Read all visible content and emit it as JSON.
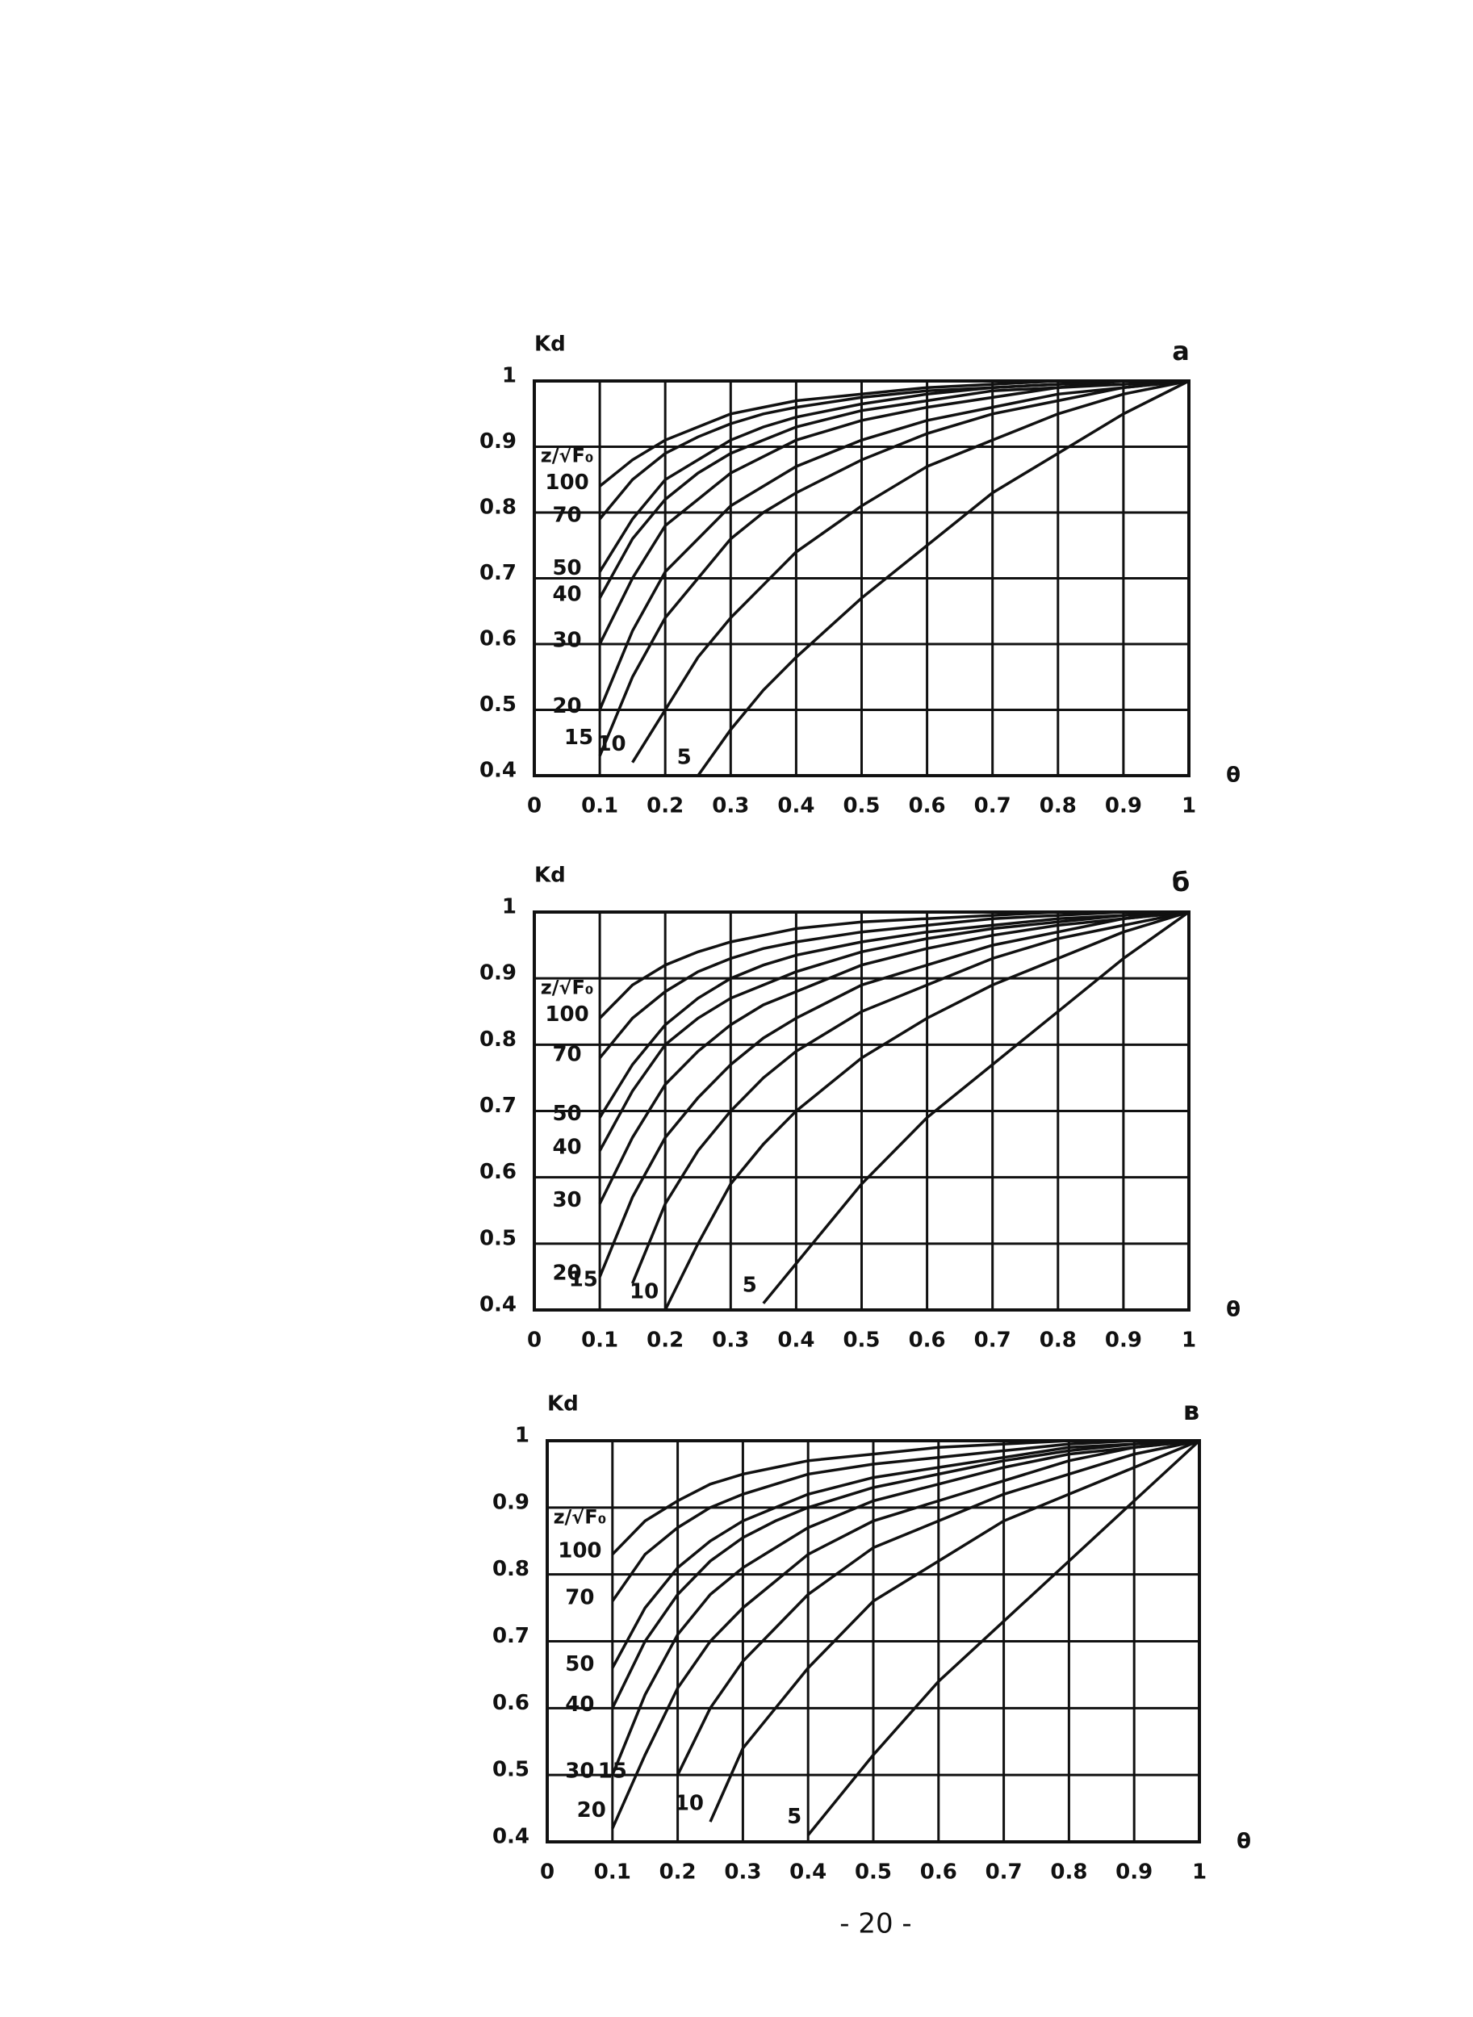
{
  "chart_data": [
    {
      "type": "line",
      "title": "а",
      "y_label": "Kd",
      "x_label": "θ",
      "legend_title": "z/√F₀",
      "grid": true,
      "x": [
        0.1,
        0.15,
        0.2,
        0.25,
        0.3,
        0.35,
        0.4,
        0.5,
        0.6,
        0.7,
        0.8,
        0.9,
        1
      ],
      "xlim": [
        0,
        1
      ],
      "ylim": [
        0.4,
        1
      ],
      "xticks": [
        0,
        0.1,
        0.2,
        0.3,
        0.4,
        0.5,
        0.6,
        0.7,
        0.8,
        0.9,
        1
      ],
      "yticks": [
        0.4,
        0.5,
        0.6,
        0.7,
        0.8,
        0.9,
        1
      ],
      "series": [
        {
          "name": "100",
          "color": "#111111",
          "values": [
            0.84,
            0.88,
            0.91,
            0.93,
            0.95,
            0.96,
            0.97,
            0.98,
            0.99,
            0.995,
            1,
            1,
            1
          ]
        },
        {
          "name": "70",
          "color": "#111111",
          "values": [
            0.79,
            0.85,
            0.89,
            0.915,
            0.935,
            0.95,
            0.96,
            0.975,
            0.985,
            0.99,
            0.995,
            1,
            1
          ]
        },
        {
          "name": "50",
          "color": "#111111",
          "values": [
            0.71,
            0.79,
            0.85,
            0.88,
            0.91,
            0.93,
            0.945,
            0.965,
            0.98,
            0.99,
            0.995,
            1,
            1
          ]
        },
        {
          "name": "40",
          "color": "#111111",
          "values": [
            0.67,
            0.76,
            0.82,
            0.86,
            0.89,
            0.91,
            0.93,
            0.955,
            0.97,
            0.985,
            0.99,
            1,
            1
          ]
        },
        {
          "name": "30",
          "color": "#111111",
          "values": [
            0.6,
            0.7,
            0.78,
            0.82,
            0.86,
            0.885,
            0.91,
            0.94,
            0.96,
            0.975,
            0.99,
            0.995,
            1
          ]
        },
        {
          "name": "20",
          "color": "#111111",
          "values": [
            0.5,
            0.62,
            0.71,
            0.76,
            0.81,
            0.84,
            0.87,
            0.91,
            0.94,
            0.96,
            0.98,
            0.99,
            1
          ]
        },
        {
          "name": "15",
          "color": "#111111",
          "values": [
            0.43,
            0.55,
            0.64,
            0.7,
            0.76,
            0.8,
            0.83,
            0.88,
            0.92,
            0.95,
            0.97,
            0.99,
            1
          ]
        },
        {
          "name": "10",
          "color": "#111111",
          "values": [
            null,
            0.42,
            0.5,
            0.58,
            0.64,
            0.69,
            0.74,
            0.81,
            0.87,
            0.91,
            0.95,
            0.98,
            1
          ]
        },
        {
          "name": "5",
          "color": "#111111",
          "values": [
            null,
            null,
            null,
            0.4,
            0.47,
            0.53,
            0.58,
            0.67,
            0.75,
            0.83,
            0.89,
            0.95,
            1
          ]
        }
      ]
    },
    {
      "type": "line",
      "title": "б",
      "y_label": "Kd",
      "x_label": "θ",
      "legend_title": "z/√F₀",
      "grid": true,
      "x": [
        0.1,
        0.15,
        0.2,
        0.25,
        0.3,
        0.35,
        0.4,
        0.5,
        0.6,
        0.7,
        0.8,
        0.9,
        1
      ],
      "xlim": [
        0,
        1
      ],
      "ylim": [
        0.4,
        1
      ],
      "xticks": [
        0,
        0.1,
        0.2,
        0.3,
        0.4,
        0.5,
        0.6,
        0.7,
        0.8,
        0.9,
        1
      ],
      "yticks": [
        0.4,
        0.5,
        0.6,
        0.7,
        0.8,
        0.9,
        1
      ],
      "series": [
        {
          "name": "100",
          "color": "#111111",
          "values": [
            0.84,
            0.89,
            0.92,
            0.94,
            0.955,
            0.965,
            0.975,
            0.985,
            0.99,
            0.995,
            1,
            1,
            1
          ]
        },
        {
          "name": "70",
          "color": "#111111",
          "values": [
            0.78,
            0.84,
            0.88,
            0.91,
            0.93,
            0.945,
            0.955,
            0.97,
            0.98,
            0.99,
            0.995,
            1,
            1
          ]
        },
        {
          "name": "50",
          "color": "#111111",
          "values": [
            0.69,
            0.77,
            0.83,
            0.87,
            0.9,
            0.92,
            0.935,
            0.955,
            0.97,
            0.98,
            0.99,
            0.995,
            1
          ]
        },
        {
          "name": "40",
          "color": "#111111",
          "values": [
            0.64,
            0.73,
            0.8,
            0.84,
            0.87,
            0.89,
            0.91,
            0.94,
            0.96,
            0.975,
            0.985,
            0.995,
            1
          ]
        },
        {
          "name": "30",
          "color": "#111111",
          "values": [
            0.56,
            0.66,
            0.74,
            0.79,
            0.83,
            0.86,
            0.88,
            0.92,
            0.945,
            0.965,
            0.98,
            0.99,
            1
          ]
        },
        {
          "name": "20",
          "color": "#111111",
          "values": [
            0.45,
            0.57,
            0.66,
            0.72,
            0.77,
            0.81,
            0.84,
            0.89,
            0.92,
            0.95,
            0.97,
            0.99,
            1
          ]
        },
        {
          "name": "15",
          "color": "#111111",
          "values": [
            null,
            0.44,
            0.56,
            0.64,
            0.7,
            0.75,
            0.79,
            0.85,
            0.89,
            0.93,
            0.96,
            0.98,
            1
          ]
        },
        {
          "name": "10",
          "color": "#111111",
          "values": [
            null,
            null,
            0.4,
            0.5,
            0.59,
            0.65,
            0.7,
            0.78,
            0.84,
            0.89,
            0.93,
            0.97,
            1
          ]
        },
        {
          "name": "5",
          "color": "#111111",
          "values": [
            null,
            null,
            null,
            null,
            null,
            0.41,
            0.47,
            0.59,
            0.69,
            0.77,
            0.85,
            0.93,
            1
          ]
        }
      ]
    },
    {
      "type": "line",
      "title": "в",
      "y_label": "Kd",
      "x_label": "θ",
      "legend_title": "z/√F₀",
      "grid": true,
      "x": [
        0.1,
        0.15,
        0.2,
        0.25,
        0.3,
        0.35,
        0.4,
        0.5,
        0.6,
        0.7,
        0.8,
        0.9,
        1
      ],
      "xlim": [
        0,
        1
      ],
      "ylim": [
        0.4,
        1
      ],
      "xticks": [
        0,
        0.1,
        0.2,
        0.3,
        0.4,
        0.5,
        0.6,
        0.7,
        0.8,
        0.9,
        1
      ],
      "yticks": [
        0.4,
        0.5,
        0.6,
        0.7,
        0.8,
        0.9,
        1
      ],
      "series": [
        {
          "name": "100",
          "color": "#111111",
          "values": [
            0.83,
            0.88,
            0.91,
            0.935,
            0.95,
            0.96,
            0.97,
            0.98,
            0.99,
            0.995,
            1,
            1,
            1
          ]
        },
        {
          "name": "70",
          "color": "#111111",
          "values": [
            0.76,
            0.83,
            0.87,
            0.9,
            0.92,
            0.935,
            0.95,
            0.965,
            0.975,
            0.985,
            0.995,
            1,
            1
          ]
        },
        {
          "name": "50",
          "color": "#111111",
          "values": [
            0.66,
            0.75,
            0.81,
            0.85,
            0.88,
            0.9,
            0.92,
            0.945,
            0.96,
            0.975,
            0.99,
            0.995,
            1
          ]
        },
        {
          "name": "40",
          "color": "#111111",
          "values": [
            0.6,
            0.7,
            0.77,
            0.82,
            0.855,
            0.88,
            0.9,
            0.93,
            0.95,
            0.97,
            0.985,
            0.995,
            1
          ]
        },
        {
          "name": "30",
          "color": "#111111",
          "values": [
            0.5,
            0.62,
            0.71,
            0.77,
            0.81,
            0.84,
            0.87,
            0.91,
            0.935,
            0.96,
            0.98,
            0.99,
            1
          ]
        },
        {
          "name": "20",
          "color": "#111111",
          "values": [
            0.42,
            0.53,
            0.63,
            0.7,
            0.75,
            0.79,
            0.83,
            0.88,
            0.91,
            0.94,
            0.97,
            0.99,
            1
          ]
        },
        {
          "name": "15",
          "color": "#111111",
          "values": [
            null,
            null,
            0.5,
            0.6,
            0.67,
            0.72,
            0.77,
            0.84,
            0.88,
            0.92,
            0.95,
            0.98,
            1
          ]
        },
        {
          "name": "10",
          "color": "#111111",
          "values": [
            null,
            null,
            null,
            0.43,
            0.54,
            0.6,
            0.66,
            0.76,
            0.82,
            0.88,
            0.92,
            0.96,
            1
          ]
        },
        {
          "name": "5",
          "color": "#111111",
          "values": [
            null,
            null,
            null,
            null,
            null,
            null,
            0.41,
            0.53,
            0.64,
            0.73,
            0.82,
            0.91,
            1
          ]
        }
      ]
    }
  ],
  "footer": {
    "page_number": "- 20 -"
  }
}
